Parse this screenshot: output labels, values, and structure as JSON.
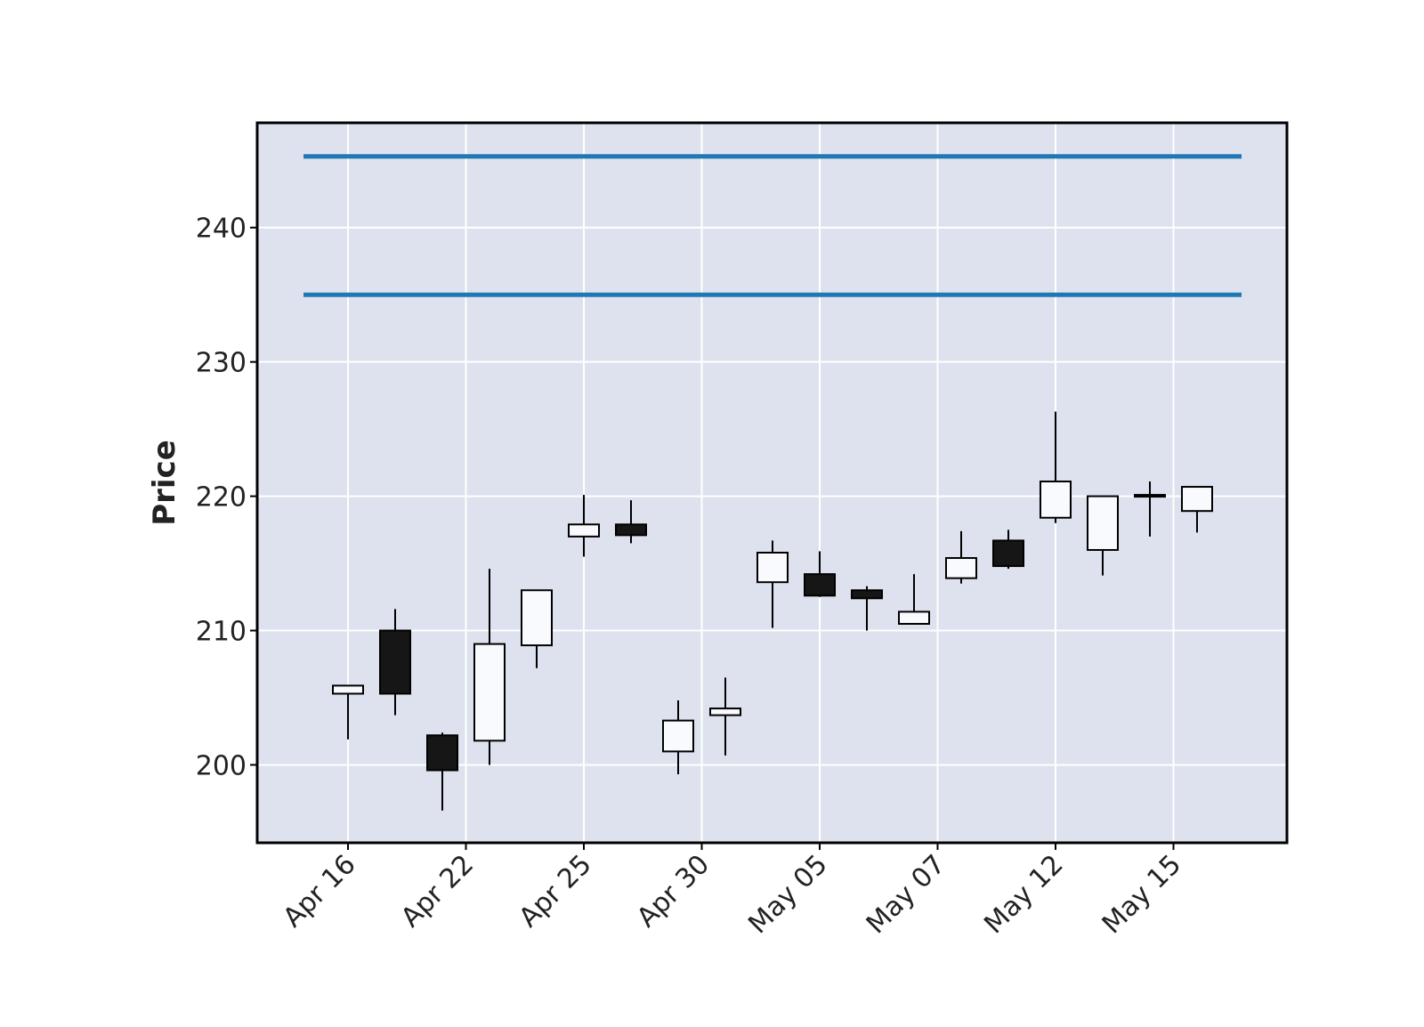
{
  "chart_data": {
    "type": "candlestick",
    "ylabel": "Price",
    "ylim": [
      194.2,
      247.8
    ],
    "yticks": [
      200,
      210,
      220,
      230,
      240
    ],
    "xtick_labels": [
      {
        "index": 0,
        "label": "Apr 16"
      },
      {
        "index": 2.5,
        "label": "Apr 22"
      },
      {
        "index": 5,
        "label": "Apr 25"
      },
      {
        "index": 7.5,
        "label": "Apr 30"
      },
      {
        "index": 10,
        "label": "May 05"
      },
      {
        "index": 12.5,
        "label": "May 07"
      },
      {
        "index": 15,
        "label": "May 12"
      },
      {
        "index": 17.5,
        "label": "May 15"
      }
    ],
    "candles": [
      {
        "open": 205.3,
        "high": 205.9,
        "low": 201.9,
        "close": 205.9
      },
      {
        "open": 210.0,
        "high": 211.6,
        "low": 203.7,
        "close": 205.3
      },
      {
        "open": 202.2,
        "high": 202.4,
        "low": 196.6,
        "close": 199.6
      },
      {
        "open": 201.8,
        "high": 214.6,
        "low": 200.0,
        "close": 209.0
      },
      {
        "open": 208.9,
        "high": 213.0,
        "low": 207.2,
        "close": 213.0
      },
      {
        "open": 217.0,
        "high": 220.1,
        "low": 215.5,
        "close": 217.9
      },
      {
        "open": 217.9,
        "high": 219.7,
        "low": 216.5,
        "close": 217.1
      },
      {
        "open": 201.0,
        "high": 204.8,
        "low": 199.3,
        "close": 203.3
      },
      {
        "open": 203.7,
        "high": 206.5,
        "low": 200.7,
        "close": 204.2
      },
      {
        "open": 213.6,
        "high": 216.7,
        "low": 210.2,
        "close": 215.8
      },
      {
        "open": 214.2,
        "high": 215.9,
        "low": 212.5,
        "close": 212.6
      },
      {
        "open": 213.0,
        "high": 213.3,
        "low": 210.0,
        "close": 212.4
      },
      {
        "open": 210.5,
        "high": 214.2,
        "low": 210.5,
        "close": 211.4
      },
      {
        "open": 213.9,
        "high": 217.4,
        "low": 213.5,
        "close": 215.4
      },
      {
        "open": 216.7,
        "high": 217.5,
        "low": 214.6,
        "close": 214.8
      },
      {
        "open": 218.4,
        "high": 226.3,
        "low": 218.0,
        "close": 221.1
      },
      {
        "open": 216.0,
        "high": 220.0,
        "low": 214.1,
        "close": 220.0
      },
      {
        "open": 220.0,
        "high": 221.1,
        "low": 217.0,
        "close": 220.1
      },
      {
        "open": 218.9,
        "high": 220.7,
        "low": 217.3,
        "close": 220.7
      }
    ],
    "hlines": [
      {
        "value": 245.3,
        "color": "#1f77b4"
      },
      {
        "value": 235.0,
        "color": "#1f77b4"
      }
    ],
    "colors": {
      "background": "#dee2ee",
      "grid": "#ffffff",
      "up_fill": "#f8fafd",
      "down_fill": "#161616",
      "edge": "#000000",
      "hline": "#1f77b4"
    },
    "grid": true
  }
}
